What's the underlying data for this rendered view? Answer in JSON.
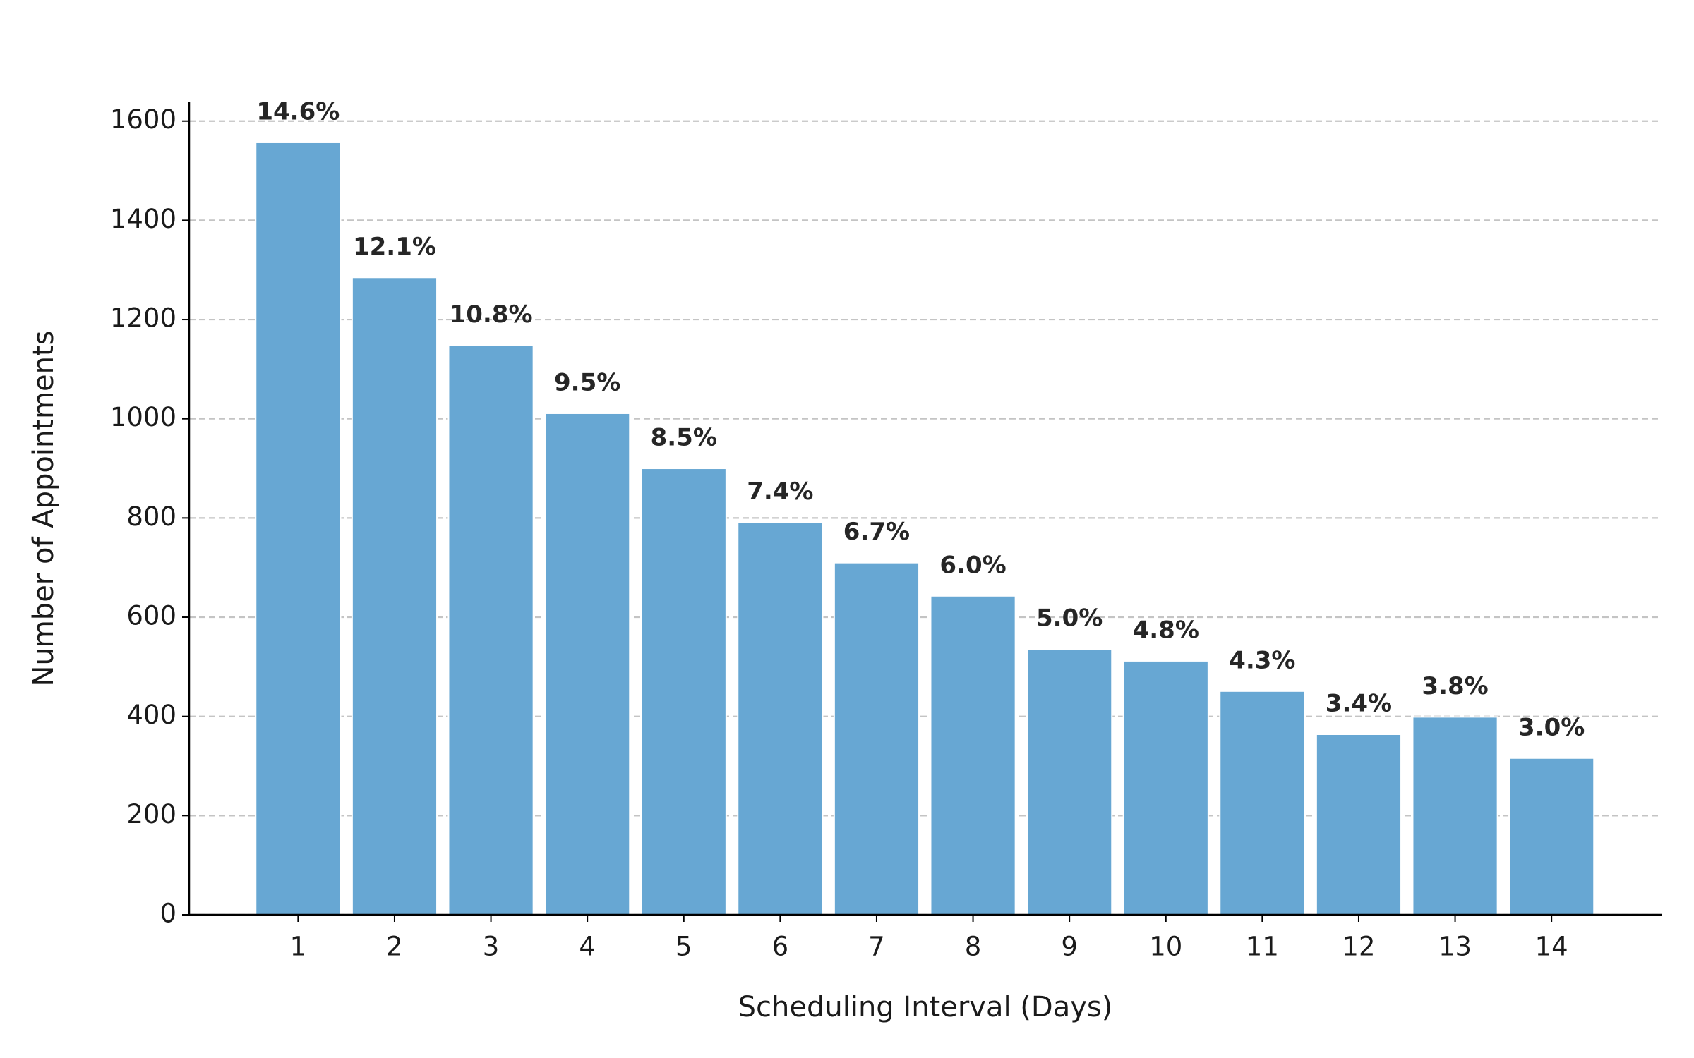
{
  "chart_data": {
    "type": "bar",
    "x_label": "Scheduling Interval (Days)",
    "y_label": "Number of Appointments",
    "categories": [
      1,
      2,
      3,
      4,
      5,
      6,
      7,
      8,
      9,
      10,
      11,
      12,
      13,
      14
    ],
    "values": [
      1557,
      1285,
      1148,
      1011,
      900,
      791,
      710,
      643,
      536,
      512,
      451,
      364,
      399,
      316
    ],
    "annotations": [
      "14.6%",
      "12.1%",
      "10.8%",
      "9.5%",
      "8.5%",
      "7.4%",
      "6.7%",
      "6.0%",
      "5.0%",
      "4.8%",
      "4.3%",
      "3.4%",
      "3.8%",
      "3.0%"
    ],
    "color": "#67a7d3",
    "ylim": [
      0,
      1638
    ],
    "yticks": [
      0,
      200,
      400,
      600,
      800,
      1000,
      1200,
      1400,
      1600
    ],
    "grid": true
  }
}
